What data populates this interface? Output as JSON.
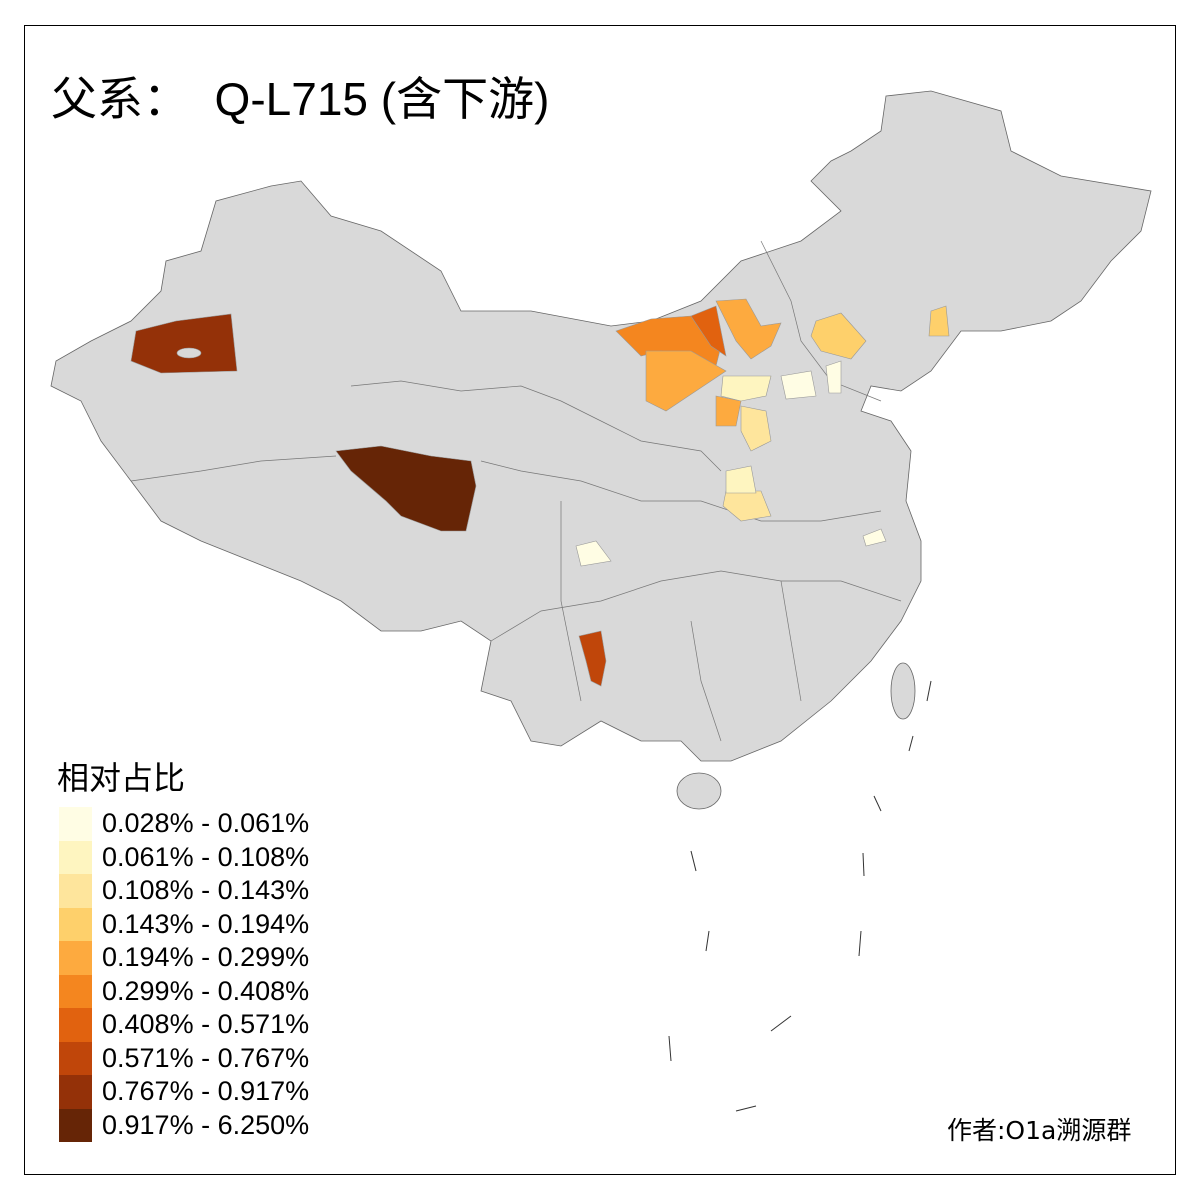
{
  "title": "父系：  Q-L715 (含下游)",
  "legend": {
    "title": "相对占比",
    "classes": [
      {
        "label": "0.028% - 0.061%",
        "color": "#FFFDE4"
      },
      {
        "label": "0.061% - 0.108%",
        "color": "#FEF5C0"
      },
      {
        "label": "0.108% - 0.143%",
        "color": "#FEE59C"
      },
      {
        "label": "0.143% - 0.194%",
        "color": "#FED06B"
      },
      {
        "label": "0.194% - 0.299%",
        "color": "#FDAA3F"
      },
      {
        "label": "0.299% - 0.408%",
        "color": "#F4861F"
      },
      {
        "label": "0.408% - 0.571%",
        "color": "#E1620F"
      },
      {
        "label": "0.571% - 0.767%",
        "color": "#C0460A"
      },
      {
        "label": "0.767% - 0.917%",
        "color": "#943108"
      },
      {
        "label": "0.917% - 6.250%",
        "color": "#662506"
      }
    ]
  },
  "no_data_color": "#D9D9D9",
  "regions": [
    {
      "id": "xinjiang-west",
      "class": 8
    },
    {
      "id": "qinghai-tibet",
      "class": 9
    },
    {
      "id": "inner-mongolia-west",
      "class": 5
    },
    {
      "id": "inner-mongolia-bayannur",
      "class": 6
    },
    {
      "id": "inner-mongolia-ordos",
      "class": 4
    },
    {
      "id": "inner-mongolia-central",
      "class": 4
    },
    {
      "id": "shanxi-west",
      "class": 4
    },
    {
      "id": "hebei-north",
      "class": 3
    },
    {
      "id": "liaoning",
      "class": 3
    },
    {
      "id": "shanxi-south",
      "class": 2
    },
    {
      "id": "henan-south",
      "class": 2
    },
    {
      "id": "shanxi-north",
      "class": 1
    },
    {
      "id": "henan-west",
      "class": 1
    },
    {
      "id": "sichuan",
      "class": 0
    },
    {
      "id": "hebei-central",
      "class": 0
    },
    {
      "id": "tianjin",
      "class": 0
    },
    {
      "id": "jiangsu",
      "class": 0
    },
    {
      "id": "yunnan-south",
      "class": 7
    }
  ],
  "author": "作者:O1a溯源群"
}
